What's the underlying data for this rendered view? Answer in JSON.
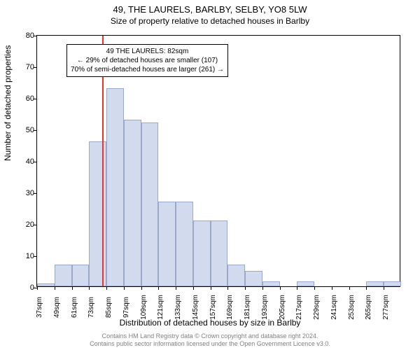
{
  "title": "49, THE LAURELS, BARLBY, SELBY, YO8 5LW",
  "subtitle": "Size of property relative to detached houses in Barlby",
  "ylabel": "Number of detached properties",
  "xlabel": "Distribution of detached houses by size in Barlby",
  "footer_line1": "Contains HM Land Registry data © Crown copyright and database right 2024.",
  "footer_line2": "Contains public sector information licensed under the Open Government Licence v3.0.",
  "chart": {
    "type": "histogram",
    "bar_fill": "#d2dbee",
    "bar_stroke": "#9aa8c9",
    "marker_color": "#ee3030",
    "background": "#ffffff",
    "ylim": [
      0,
      80
    ],
    "yticks": [
      0,
      10,
      20,
      30,
      40,
      50,
      60,
      70,
      80
    ],
    "xticks_start": 37,
    "xticks_step": 12,
    "xticks_count": 21,
    "xtick_unit": "sqm",
    "marker_value": 82,
    "bins": [
      {
        "start": 37,
        "count": 1
      },
      {
        "start": 49,
        "count": 7
      },
      {
        "start": 61,
        "count": 7
      },
      {
        "start": 73,
        "count": 46
      },
      {
        "start": 85,
        "count": 63
      },
      {
        "start": 97,
        "count": 53
      },
      {
        "start": 109,
        "count": 52
      },
      {
        "start": 121,
        "count": 27
      },
      {
        "start": 133,
        "count": 27
      },
      {
        "start": 145,
        "count": 21
      },
      {
        "start": 157,
        "count": 21
      },
      {
        "start": 169,
        "count": 7
      },
      {
        "start": 181,
        "count": 5
      },
      {
        "start": 193,
        "count": 1.5
      },
      {
        "start": 205,
        "count": 0
      },
      {
        "start": 217,
        "count": 1.5
      },
      {
        "start": 229,
        "count": 0
      },
      {
        "start": 241,
        "count": 0
      },
      {
        "start": 253,
        "count": 0
      },
      {
        "start": 265,
        "count": 1.5
      },
      {
        "start": 277,
        "count": 1.5
      }
    ],
    "annotation": {
      "line1": "49 THE LAURELS: 82sqm",
      "line2": "← 29% of detached houses are smaller (107)",
      "line3": "70% of semi-detached houses are larger (261) →"
    },
    "title_fontsize": 13,
    "label_fontsize": 12,
    "tick_fontsize": 11
  }
}
